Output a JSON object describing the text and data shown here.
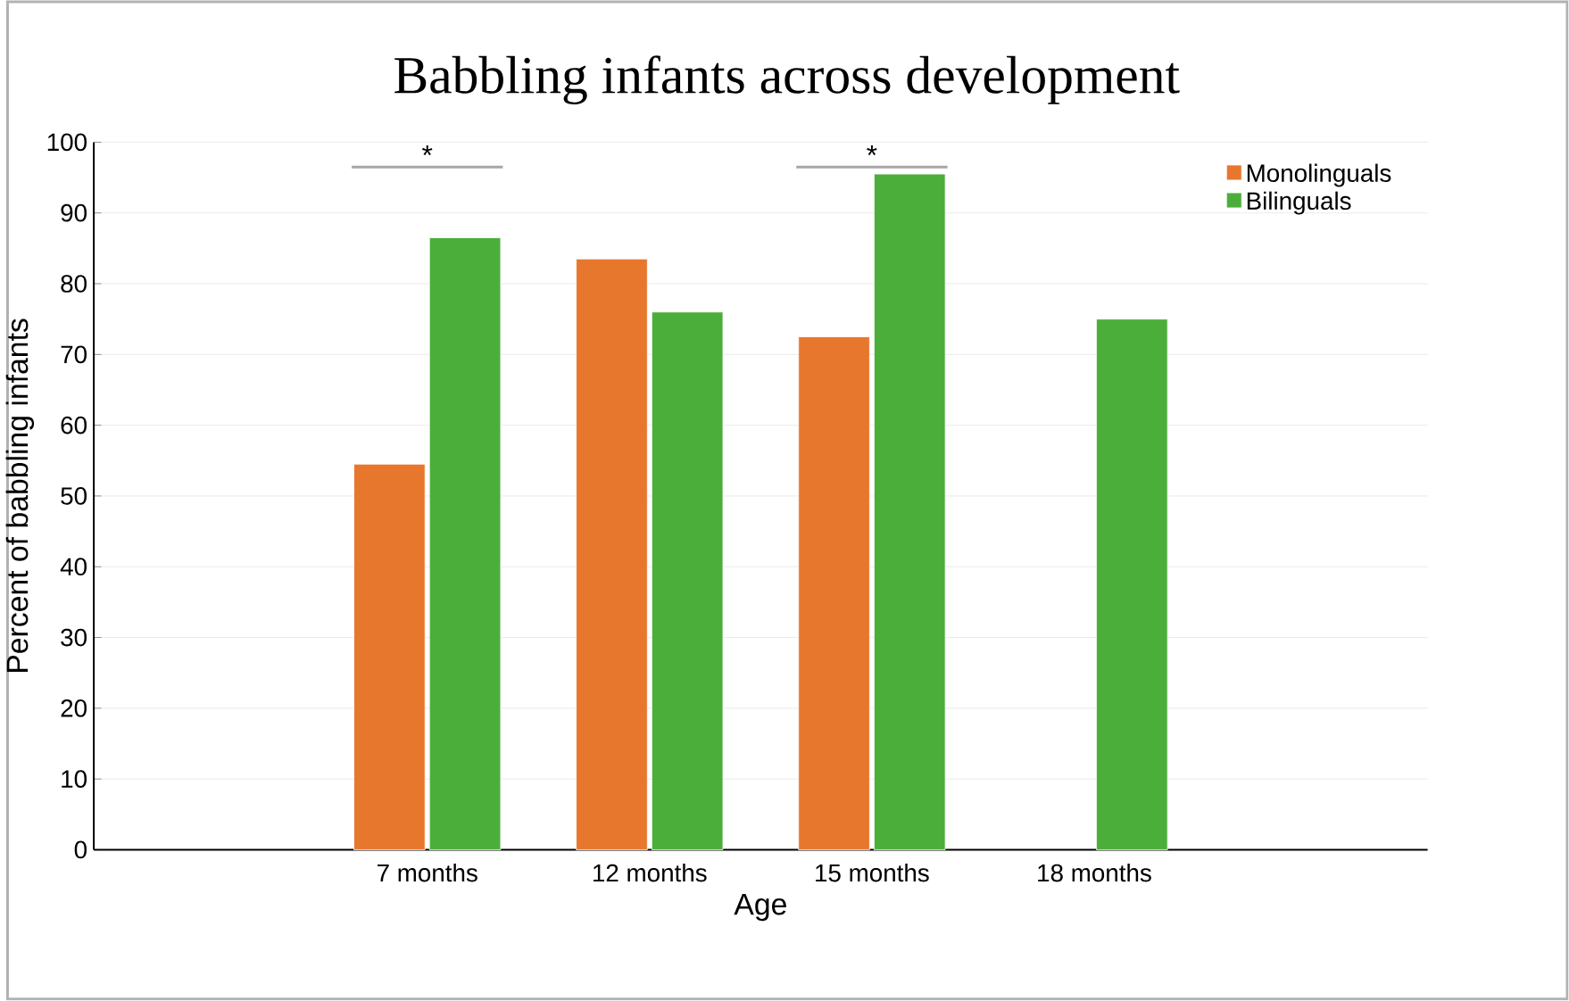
{
  "chart_data": {
    "type": "bar",
    "title": "Babbling infants across development",
    "xlabel": "Age",
    "ylabel": "Percent of babbling infants",
    "categories": [
      null,
      "7 months",
      "12 months",
      "15 months",
      "18 months",
      null
    ],
    "series": [
      {
        "name": "Monolinguals",
        "color": "#e8772e",
        "values": [
          null,
          54.5,
          83.5,
          72.5,
          null,
          null
        ]
      },
      {
        "name": "Bilinguals",
        "color": "#4cae3a",
        "values": [
          null,
          86.5,
          76,
          95.5,
          75,
          null
        ]
      }
    ],
    "ylim": [
      0,
      100
    ],
    "yticks": [
      0,
      10,
      20,
      30,
      40,
      50,
      60,
      70,
      80,
      90,
      100
    ],
    "grid": "y",
    "legend": "top right",
    "annotations": [
      "*",
      "*"
    ]
  }
}
